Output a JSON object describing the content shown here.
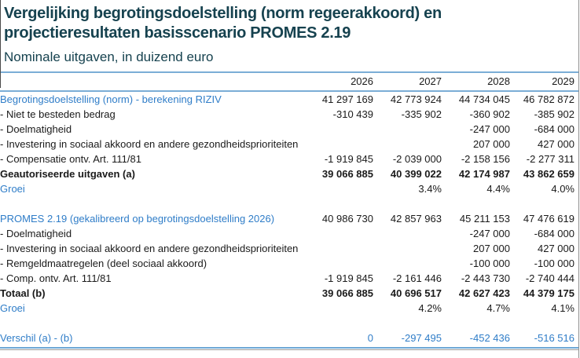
{
  "header": {
    "title": "Vergelijking begrotingsdoelstelling (norm regeerakkoord) en projectieresultaten basisscenario PROMES 2.19",
    "subtitle": "Nominale uitgaven, in duizend euro"
  },
  "colors": {
    "title_teal": "#16424f",
    "accent_blue": "#2f7dc8",
    "rule_blue": "#7badd6",
    "bottom_gray": "#9a9a9a"
  },
  "table": {
    "label_column_header": "",
    "columns": [
      "2026",
      "2027",
      "2028",
      "2029"
    ],
    "rows": [
      {
        "label": "Begrotingsdoelstelling (norm) - berekening RIZIV",
        "style": "label-blue",
        "values": [
          "41 297 169",
          "42 773 924",
          "44 734 045",
          "46 782 872"
        ]
      },
      {
        "label": "- Niet te besteden bedrag",
        "style": "item",
        "values": [
          "-310 439",
          "-335 902",
          "-360 902",
          "-385 902"
        ]
      },
      {
        "label": "- Doelmatigheid",
        "style": "item",
        "values": [
          "",
          "",
          "-247 000",
          "-684 000"
        ]
      },
      {
        "label": "- Investering in sociaal akkoord en andere gezondheidsprioriteiten",
        "style": "item",
        "values": [
          "",
          "",
          "207 000",
          "427 000"
        ]
      },
      {
        "label": "- Compensatie ontv. Art. 111/81",
        "style": "item",
        "values": [
          "-1 919 845",
          "-2 039 000",
          "-2 158 156",
          "-2 277 311"
        ]
      },
      {
        "label": "Geautoriseerde uitgaven (a)",
        "style": "total",
        "values": [
          "39 066 885",
          "40 399 022",
          "42 174 987",
          "43 862 659"
        ]
      },
      {
        "label": "Groei",
        "style": "label-blue",
        "values": [
          "",
          "3.4%",
          "4.4%",
          "4.0%"
        ]
      },
      {
        "label": "",
        "style": "spacer",
        "values": [
          "",
          "",
          "",
          ""
        ]
      },
      {
        "label": "PROMES 2.19  (gekalibreerd op begrotingsdoelstelling 2026)",
        "style": "label-blue",
        "values": [
          "40 986 730",
          "42 857 963",
          "45 211 153",
          "47 476 619"
        ]
      },
      {
        "label": "- Doelmatigheid",
        "style": "item",
        "values": [
          "",
          "",
          "-247 000",
          "-684 000"
        ]
      },
      {
        "label": "- Investering in sociaal akkoord en andere gezondheidsprioriteiten",
        "style": "item",
        "values": [
          "",
          "",
          "207 000",
          "427 000"
        ]
      },
      {
        "label": "- Remgeldmaatregelen (deel sociaal akkoord)",
        "style": "item",
        "values": [
          "",
          "",
          "-100 000",
          "-100 000"
        ]
      },
      {
        "label": "- Comp. ontv. Art. 111/81",
        "style": "item",
        "values": [
          "-1 919 845",
          "-2 161 446",
          "-2 443 730",
          "-2 740 444"
        ]
      },
      {
        "label": "Totaal (b)",
        "style": "total",
        "values": [
          "39 066 885",
          "40 696 517",
          "42 627 423",
          "44 379 175"
        ]
      },
      {
        "label": "Groei",
        "style": "label-blue",
        "values": [
          "",
          "4.2%",
          "4.7%",
          "4.1%"
        ]
      },
      {
        "label": "",
        "style": "spacer",
        "values": [
          "",
          "",
          "",
          ""
        ]
      },
      {
        "label": "Verschil (a) - (b)",
        "style": "diff",
        "values": [
          "0",
          "-297 495",
          "-452 436",
          "-516 516"
        ]
      }
    ]
  }
}
